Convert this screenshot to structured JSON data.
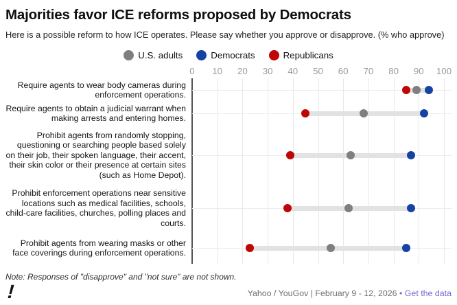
{
  "header": {
    "title": "Majorities favor ICE reforms proposed by Democrats",
    "subtitle": "Here is a possible reform to how ICE operates. Please say whether you approve or disapprove. (% who approve)"
  },
  "legend": [
    {
      "key": "us-adults",
      "label": "U.S. adults",
      "color": "#7f7f7f"
    },
    {
      "key": "democrats",
      "label": "Democrats",
      "color": "#1443a5"
    },
    {
      "key": "republicans",
      "label": "Republicans",
      "color": "#c00505"
    }
  ],
  "chart_data": {
    "type": "scatter",
    "variant": "dumbbell-dot-plot",
    "x_axis": {
      "range": [
        0,
        100
      ],
      "ticks": [
        0,
        10,
        20,
        30,
        40,
        50,
        60,
        70,
        80,
        90,
        100
      ]
    },
    "grid": "on",
    "legend_position": "top-center",
    "categories": [
      "Require agents to wear body cameras during enforcement operations.",
      "Require agents to obtain a judicial warrant when making arrests and entering homes.",
      "Prohibit agents from randomly stopping, questioning or searching people based solely on their job, their spoken language, their accent, their skin color or their presence at certain sites (such as Home Depot).",
      "Prohibit enforcement operations near sensitive locations such as medical facilities, schools, child-care facilities, churches, polling places and courts.",
      "Prohibit agents from wearing masks or other face coverings during enforcement operations."
    ],
    "series": [
      {
        "name": "U.S. adults",
        "color": "#7f7f7f",
        "values": [
          89,
          68,
          63,
          62,
          55
        ]
      },
      {
        "name": "Democrats",
        "color": "#1443a5",
        "values": [
          94,
          92,
          87,
          87,
          85
        ]
      },
      {
        "name": "Republicans",
        "color": "#c00505",
        "values": [
          85,
          45,
          39,
          38,
          23
        ]
      }
    ],
    "connector_color": "#e2e2e2"
  },
  "footer": {
    "note": "Note: Responses of \"disapprove\" and \"not sure\" are not shown.",
    "logo": "!",
    "credit": "Yahoo / YouGov | February 9 - 12, 2026",
    "separator": " • ",
    "link": "Get the data"
  }
}
